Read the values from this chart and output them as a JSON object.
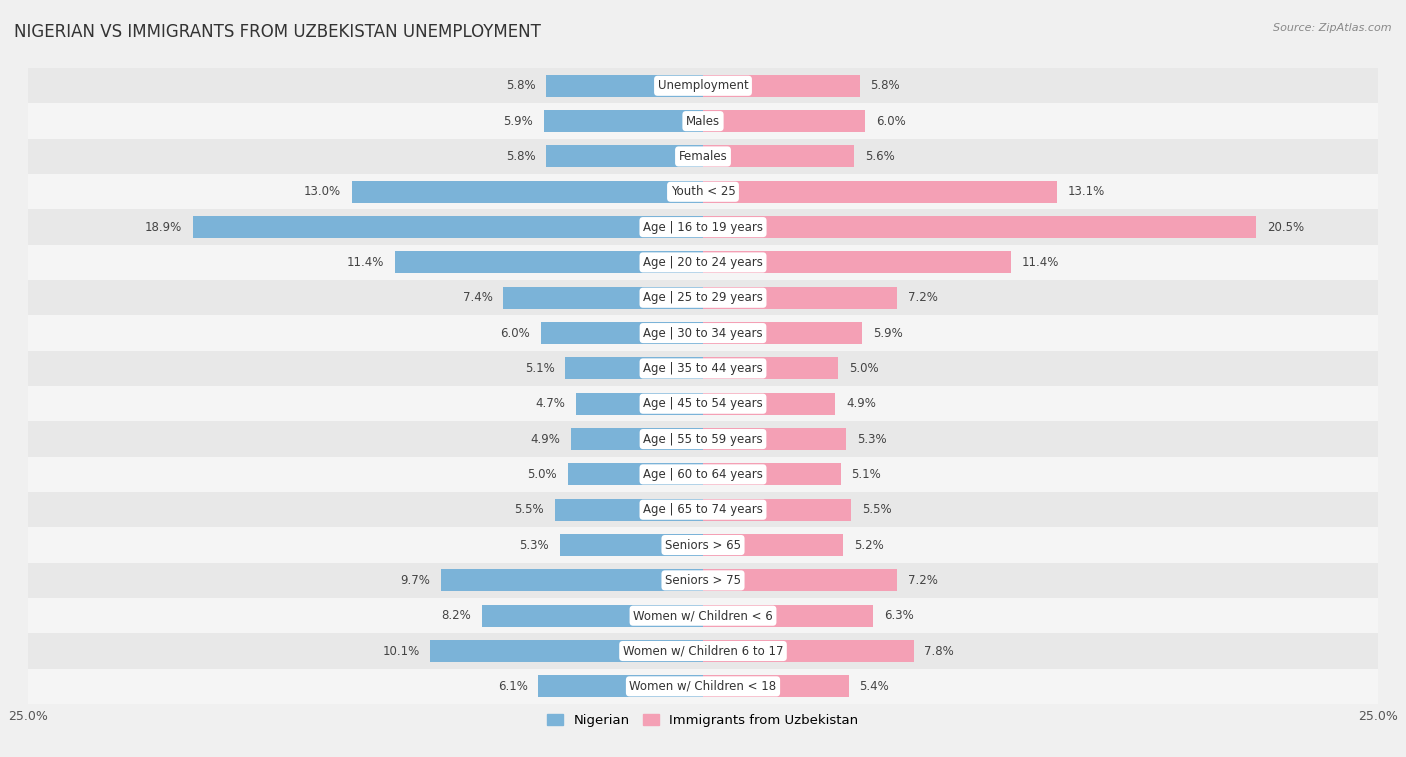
{
  "title": "NIGERIAN VS IMMIGRANTS FROM UZBEKISTAN UNEMPLOYMENT",
  "source": "Source: ZipAtlas.com",
  "categories": [
    "Unemployment",
    "Males",
    "Females",
    "Youth < 25",
    "Age | 16 to 19 years",
    "Age | 20 to 24 years",
    "Age | 25 to 29 years",
    "Age | 30 to 34 years",
    "Age | 35 to 44 years",
    "Age | 45 to 54 years",
    "Age | 55 to 59 years",
    "Age | 60 to 64 years",
    "Age | 65 to 74 years",
    "Seniors > 65",
    "Seniors > 75",
    "Women w/ Children < 6",
    "Women w/ Children 6 to 17",
    "Women w/ Children < 18"
  ],
  "nigerian": [
    5.8,
    5.9,
    5.8,
    13.0,
    18.9,
    11.4,
    7.4,
    6.0,
    5.1,
    4.7,
    4.9,
    5.0,
    5.5,
    5.3,
    9.7,
    8.2,
    10.1,
    6.1
  ],
  "uzbekistan": [
    5.8,
    6.0,
    5.6,
    13.1,
    20.5,
    11.4,
    7.2,
    5.9,
    5.0,
    4.9,
    5.3,
    5.1,
    5.5,
    5.2,
    7.2,
    6.3,
    7.8,
    5.4
  ],
  "nigerian_color": "#7bb3d8",
  "uzbekistan_color": "#f4a0b5",
  "background_color": "#f0f0f0",
  "row_color_odd": "#e8e8e8",
  "row_color_even": "#f5f5f5",
  "xlim": 25.0,
  "bar_height": 0.62,
  "label_fontsize": 8.5,
  "category_fontsize": 8.5,
  "title_fontsize": 12
}
